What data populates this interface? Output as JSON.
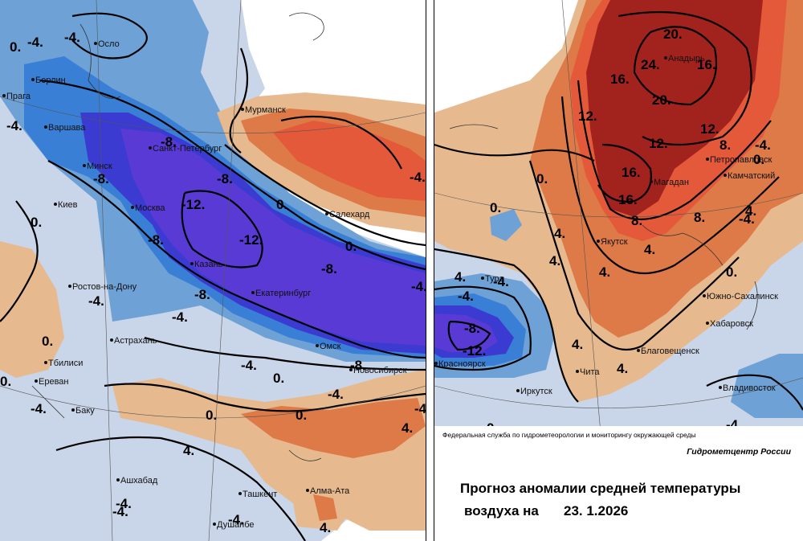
{
  "colors": {
    "light_blue": "#c9d5e8",
    "mid_blue": "#6ea1d6",
    "blue": "#3a7fd6",
    "deep_blue": "#3b3bd2",
    "violet": "#5a3ad4",
    "tan": "#e7b98e",
    "orange": "#dd7a48",
    "red_orange": "#e3593a",
    "dark_red": "#a2231e",
    "white": "#ffffff"
  },
  "left_map": {
    "cities": [
      {
        "id": "oslo",
        "name": "Осло"
      },
      {
        "id": "berlin",
        "name": "Берлин"
      },
      {
        "id": "praha",
        "name": "Прага"
      },
      {
        "id": "warsaw",
        "name": "Варшава"
      },
      {
        "id": "minsk",
        "name": "Минск"
      },
      {
        "id": "kiev",
        "name": "Киев"
      },
      {
        "id": "spb",
        "name": "Санкт-Петербург"
      },
      {
        "id": "moscow",
        "name": "Москва"
      },
      {
        "id": "murmansk",
        "name": "Мурманск"
      },
      {
        "id": "salekhard",
        "name": "Салехард"
      },
      {
        "id": "kazan",
        "name": "Казань"
      },
      {
        "id": "ekb",
        "name": "Екатеринбург"
      },
      {
        "id": "rostov",
        "name": "Ростов-на-Дону"
      },
      {
        "id": "astrakhan",
        "name": "Астрахань"
      },
      {
        "id": "tbilisi",
        "name": "Тбилиси"
      },
      {
        "id": "yerevan",
        "name": "Ереван"
      },
      {
        "id": "baku",
        "name": "Баку"
      },
      {
        "id": "omsk",
        "name": "Омск"
      },
      {
        "id": "novosibirsk",
        "name": "Новосибирск"
      },
      {
        "id": "ashgabat",
        "name": "Ашхабад"
      },
      {
        "id": "tashkent",
        "name": "Ташкент"
      },
      {
        "id": "almaty",
        "name": "Алма-Ата"
      },
      {
        "id": "dushanbe",
        "name": "Душанбе"
      }
    ],
    "contour_labels": [
      "0.",
      "-4.",
      "-4.",
      "-4.",
      "-8.",
      "-8.",
      "-8.",
      "-12.",
      "-12.",
      "-8.",
      "-8.",
      "0.",
      "0.",
      "-8.",
      "-4.",
      "-4.",
      "0.",
      "-4.",
      "-8.",
      "-4.",
      "0.",
      "0.",
      "0.",
      "0.",
      "-4.",
      "-4.",
      "4.",
      "4.",
      "4.",
      "-4.",
      "-4.",
      "0.",
      "-4.",
      "-4.",
      "-4."
    ]
  },
  "right_map": {
    "cities": [
      {
        "id": "anadyr",
        "name": "Анадырь"
      },
      {
        "id": "petropavlovsk",
        "name": "Петропавловск"
      },
      {
        "id": "kamchatsky",
        "name": "Камчатский"
      },
      {
        "id": "magadan",
        "name": "Магадан"
      },
      {
        "id": "yakutsk",
        "name": "Якутск"
      },
      {
        "id": "tura",
        "name": "Тура"
      },
      {
        "id": "krasnoyarsk",
        "name": "Красноярск"
      },
      {
        "id": "irkutsk",
        "name": "Иркутск"
      },
      {
        "id": "chita",
        "name": "Чита"
      },
      {
        "id": "sakhalinsk",
        "name": "Южно-Сахалинск"
      },
      {
        "id": "khabarovsk",
        "name": "Хабаровск"
      },
      {
        "id": "blagoveshchensk",
        "name": "Благовещенск"
      },
      {
        "id": "vladivostok",
        "name": "Владивосток"
      }
    ],
    "contour_labels": [
      "20.",
      "24.",
      "16.",
      "16.",
      "12.",
      "20.",
      "12.",
      "12.",
      "8.",
      "16.",
      "16.",
      "8.",
      "4.",
      "0.",
      "0.",
      "4.",
      "4.",
      "4.",
      "4.",
      "8.",
      "4.",
      "0.",
      "0.",
      "-4.",
      "-4.",
      "-8.",
      "-12.",
      "4.",
      "4.",
      "0.",
      "-4.",
      "-4.",
      "-4."
    ]
  },
  "caption": {
    "org": "Федеральная служба по гидрометеорологии и мониторингу окружающей среды",
    "center": "Гидрометцентр России",
    "title_line1": "Прогноз аномалии средней температуры",
    "title_line2": "воздуха на",
    "date": "23. 1.2026"
  }
}
